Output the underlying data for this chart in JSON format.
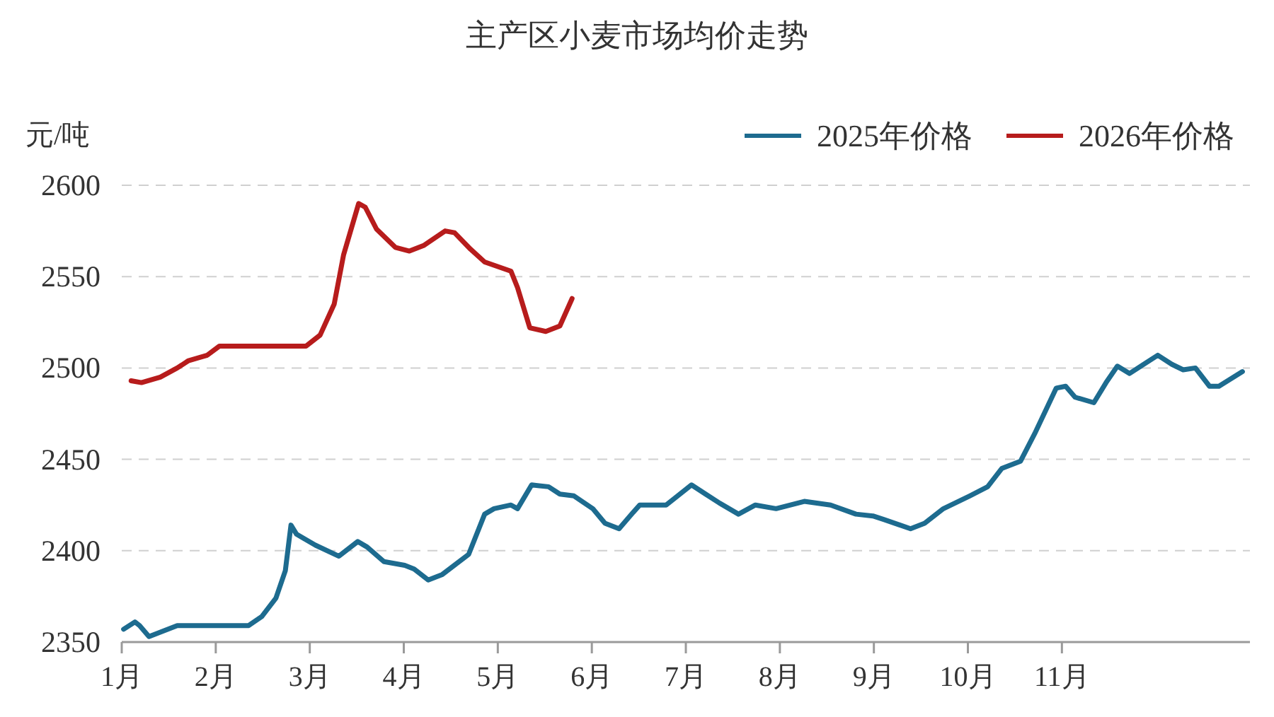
{
  "chart_data": {
    "type": "line",
    "title": "主产区小麦市场均价走势",
    "ylabel": "元/吨",
    "xlim": [
      1,
      13
    ],
    "xticks": [
      {
        "value": 1,
        "label": "1月"
      },
      {
        "value": 2,
        "label": "2月"
      },
      {
        "value": 3,
        "label": "3月"
      },
      {
        "value": 4,
        "label": "4月"
      },
      {
        "value": 5,
        "label": "5月"
      },
      {
        "value": 6,
        "label": "6月"
      },
      {
        "value": 7,
        "label": "7月"
      },
      {
        "value": 8,
        "label": "8月"
      },
      {
        "value": 9,
        "label": "9月"
      },
      {
        "value": 10,
        "label": "10月"
      },
      {
        "value": 11,
        "label": "11月"
      }
    ],
    "ylim": [
      2350,
      2600
    ],
    "yticks": [
      2350,
      2400,
      2450,
      2500,
      2550,
      2600
    ],
    "grid": "y",
    "legend": "top right",
    "line_style": "solid",
    "series": [
      {
        "name": "2025年价格",
        "color": "#1d6b8f",
        "x": [
          1.02,
          1.14,
          1.19,
          1.29,
          1.44,
          1.59,
          1.81,
          2.06,
          2.35,
          2.49,
          2.64,
          2.74,
          2.8,
          2.86,
          3.06,
          3.31,
          3.51,
          3.61,
          3.79,
          4.01,
          4.11,
          4.26,
          4.41,
          4.69,
          4.86,
          4.96,
          5.14,
          5.21,
          5.36,
          5.54,
          5.66,
          5.81,
          6.01,
          6.14,
          6.29,
          6.44,
          6.51,
          6.79,
          6.89,
          7.06,
          7.21,
          7.36,
          7.56,
          7.74,
          7.96,
          8.26,
          8.54,
          8.81,
          8.99,
          9.11,
          9.39,
          9.54,
          9.74,
          10.02,
          10.21,
          10.36,
          10.56,
          10.71,
          10.94,
          11.04,
          11.14,
          11.34,
          11.47,
          11.59,
          11.72,
          12.02,
          12.17,
          12.29,
          12.42,
          12.57,
          12.67,
          12.92
        ],
        "values": [
          2357,
          2361,
          2359,
          2353,
          2356,
          2359,
          2359,
          2359,
          2359,
          2364,
          2374,
          2389,
          2414,
          2409,
          2403,
          2397,
          2405,
          2402,
          2394,
          2392,
          2390,
          2384,
          2387,
          2398,
          2420,
          2423,
          2425,
          2423,
          2436,
          2435,
          2431,
          2430,
          2423,
          2415,
          2412,
          2421,
          2425,
          2425,
          2429,
          2436,
          2431,
          2426,
          2420,
          2425,
          2423,
          2427,
          2425,
          2420,
          2419,
          2417,
          2412,
          2415,
          2423,
          2430,
          2435,
          2445,
          2449,
          2464,
          2489,
          2490,
          2484,
          2481,
          2492,
          2501,
          2497,
          2507,
          2502,
          2499,
          2500,
          2490,
          2490,
          2498
        ]
      },
      {
        "name": "2026年价格",
        "color": "#b71c1c",
        "x": [
          1.1,
          1.21,
          1.41,
          1.59,
          1.71,
          1.91,
          2.04,
          2.96,
          3.11,
          3.26,
          3.36,
          3.52,
          3.59,
          3.71,
          3.91,
          4.06,
          4.21,
          4.44,
          4.54,
          4.71,
          4.86,
          5.14,
          5.21,
          5.34,
          5.51,
          5.66,
          5.79
        ],
        "values": [
          2493,
          2492,
          2495,
          2500,
          2504,
          2507,
          2512,
          2512,
          2518,
          2535,
          2562,
          2590,
          2588,
          2576,
          2566,
          2564,
          2567,
          2575,
          2574,
          2565,
          2558,
          2553,
          2544,
          2522,
          2520,
          2523,
          2538
        ]
      }
    ]
  }
}
